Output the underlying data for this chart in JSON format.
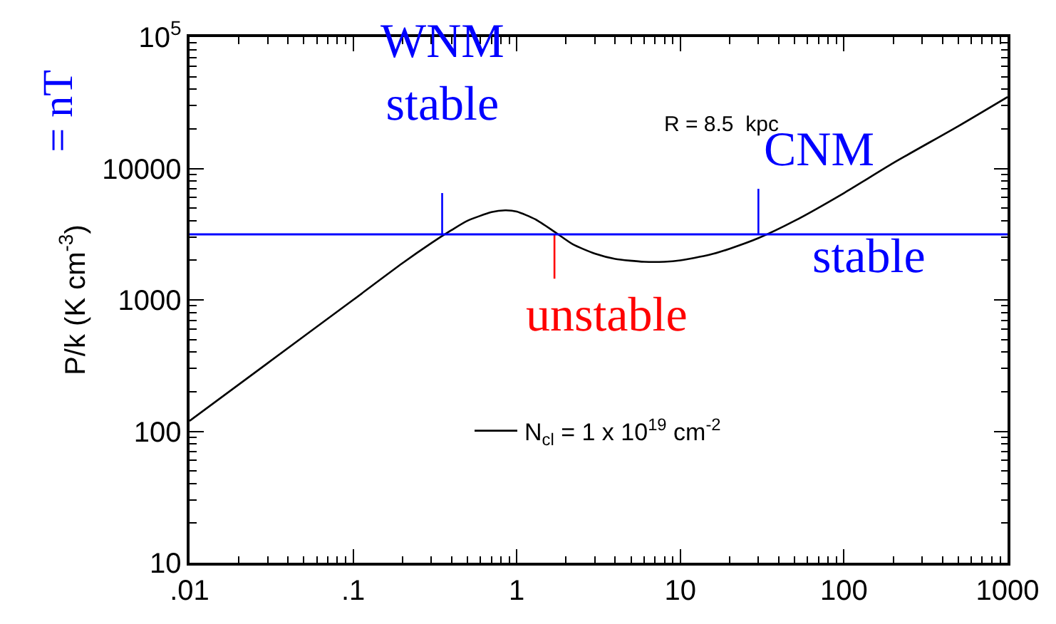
{
  "chart_data": {
    "type": "line",
    "ylabel": "P/k (K cm$^{-3}$)",
    "log": "xy",
    "legend": "bottom",
    "marker": "none",
    "line_style": "solid",
    "xlim": [
      0.01,
      1000
    ],
    "ylim": [
      10,
      100000
    ],
    "xticks": [
      {
        "value": 0.01,
        "label": ".01"
      },
      {
        "value": 0.1,
        "label": ".1"
      },
      1,
      10,
      100,
      1000
    ],
    "yticks": [
      10,
      100,
      1000,
      10000,
      {
        "value": 100000,
        "label": "10$^{5}$"
      }
    ],
    "series": [
      {
        "name": "N$_{cl}$ = 1 x 10$^{19}$ cm$^{-2}$",
        "color": "#000000",
        "x": [
          0.01,
          0.03,
          0.1,
          0.2,
          0.3,
          0.4,
          0.5,
          0.7,
          0.85,
          1.0,
          1.3,
          1.7,
          2.2,
          3,
          4,
          6,
          8,
          10,
          15,
          20,
          30,
          50,
          100,
          200,
          500,
          1000
        ],
        "values": [
          120,
          330,
          1000,
          1900,
          2700,
          3400,
          4000,
          4650,
          4800,
          4700,
          4100,
          3300,
          2650,
          2250,
          2050,
          1950,
          1950,
          2000,
          2200,
          2450,
          2950,
          4000,
          6500,
          11000,
          21000,
          35000
        ]
      },
      {
        "color": "#0000ff",
        "x": [
          0.35,
          0.35
        ],
        "values": [
          3150,
          6500
        ]
      },
      {
        "color": "#0000ff",
        "x": [
          30,
          30
        ],
        "values": [
          3150,
          7000
        ]
      },
      {
        "color": "#ff0000",
        "x": [
          1.7,
          1.7
        ],
        "values": [
          3150,
          1450
        ]
      }
    ],
    "ref_lines": [
      {
        "axis": "y",
        "value": 3150,
        "color": "#0000ff"
      }
    ],
    "annotations": [
      "R = 8.5  kpc",
      "= nT",
      "WNM\nstable",
      "CNM",
      "stable",
      "unstable"
    ]
  }
}
